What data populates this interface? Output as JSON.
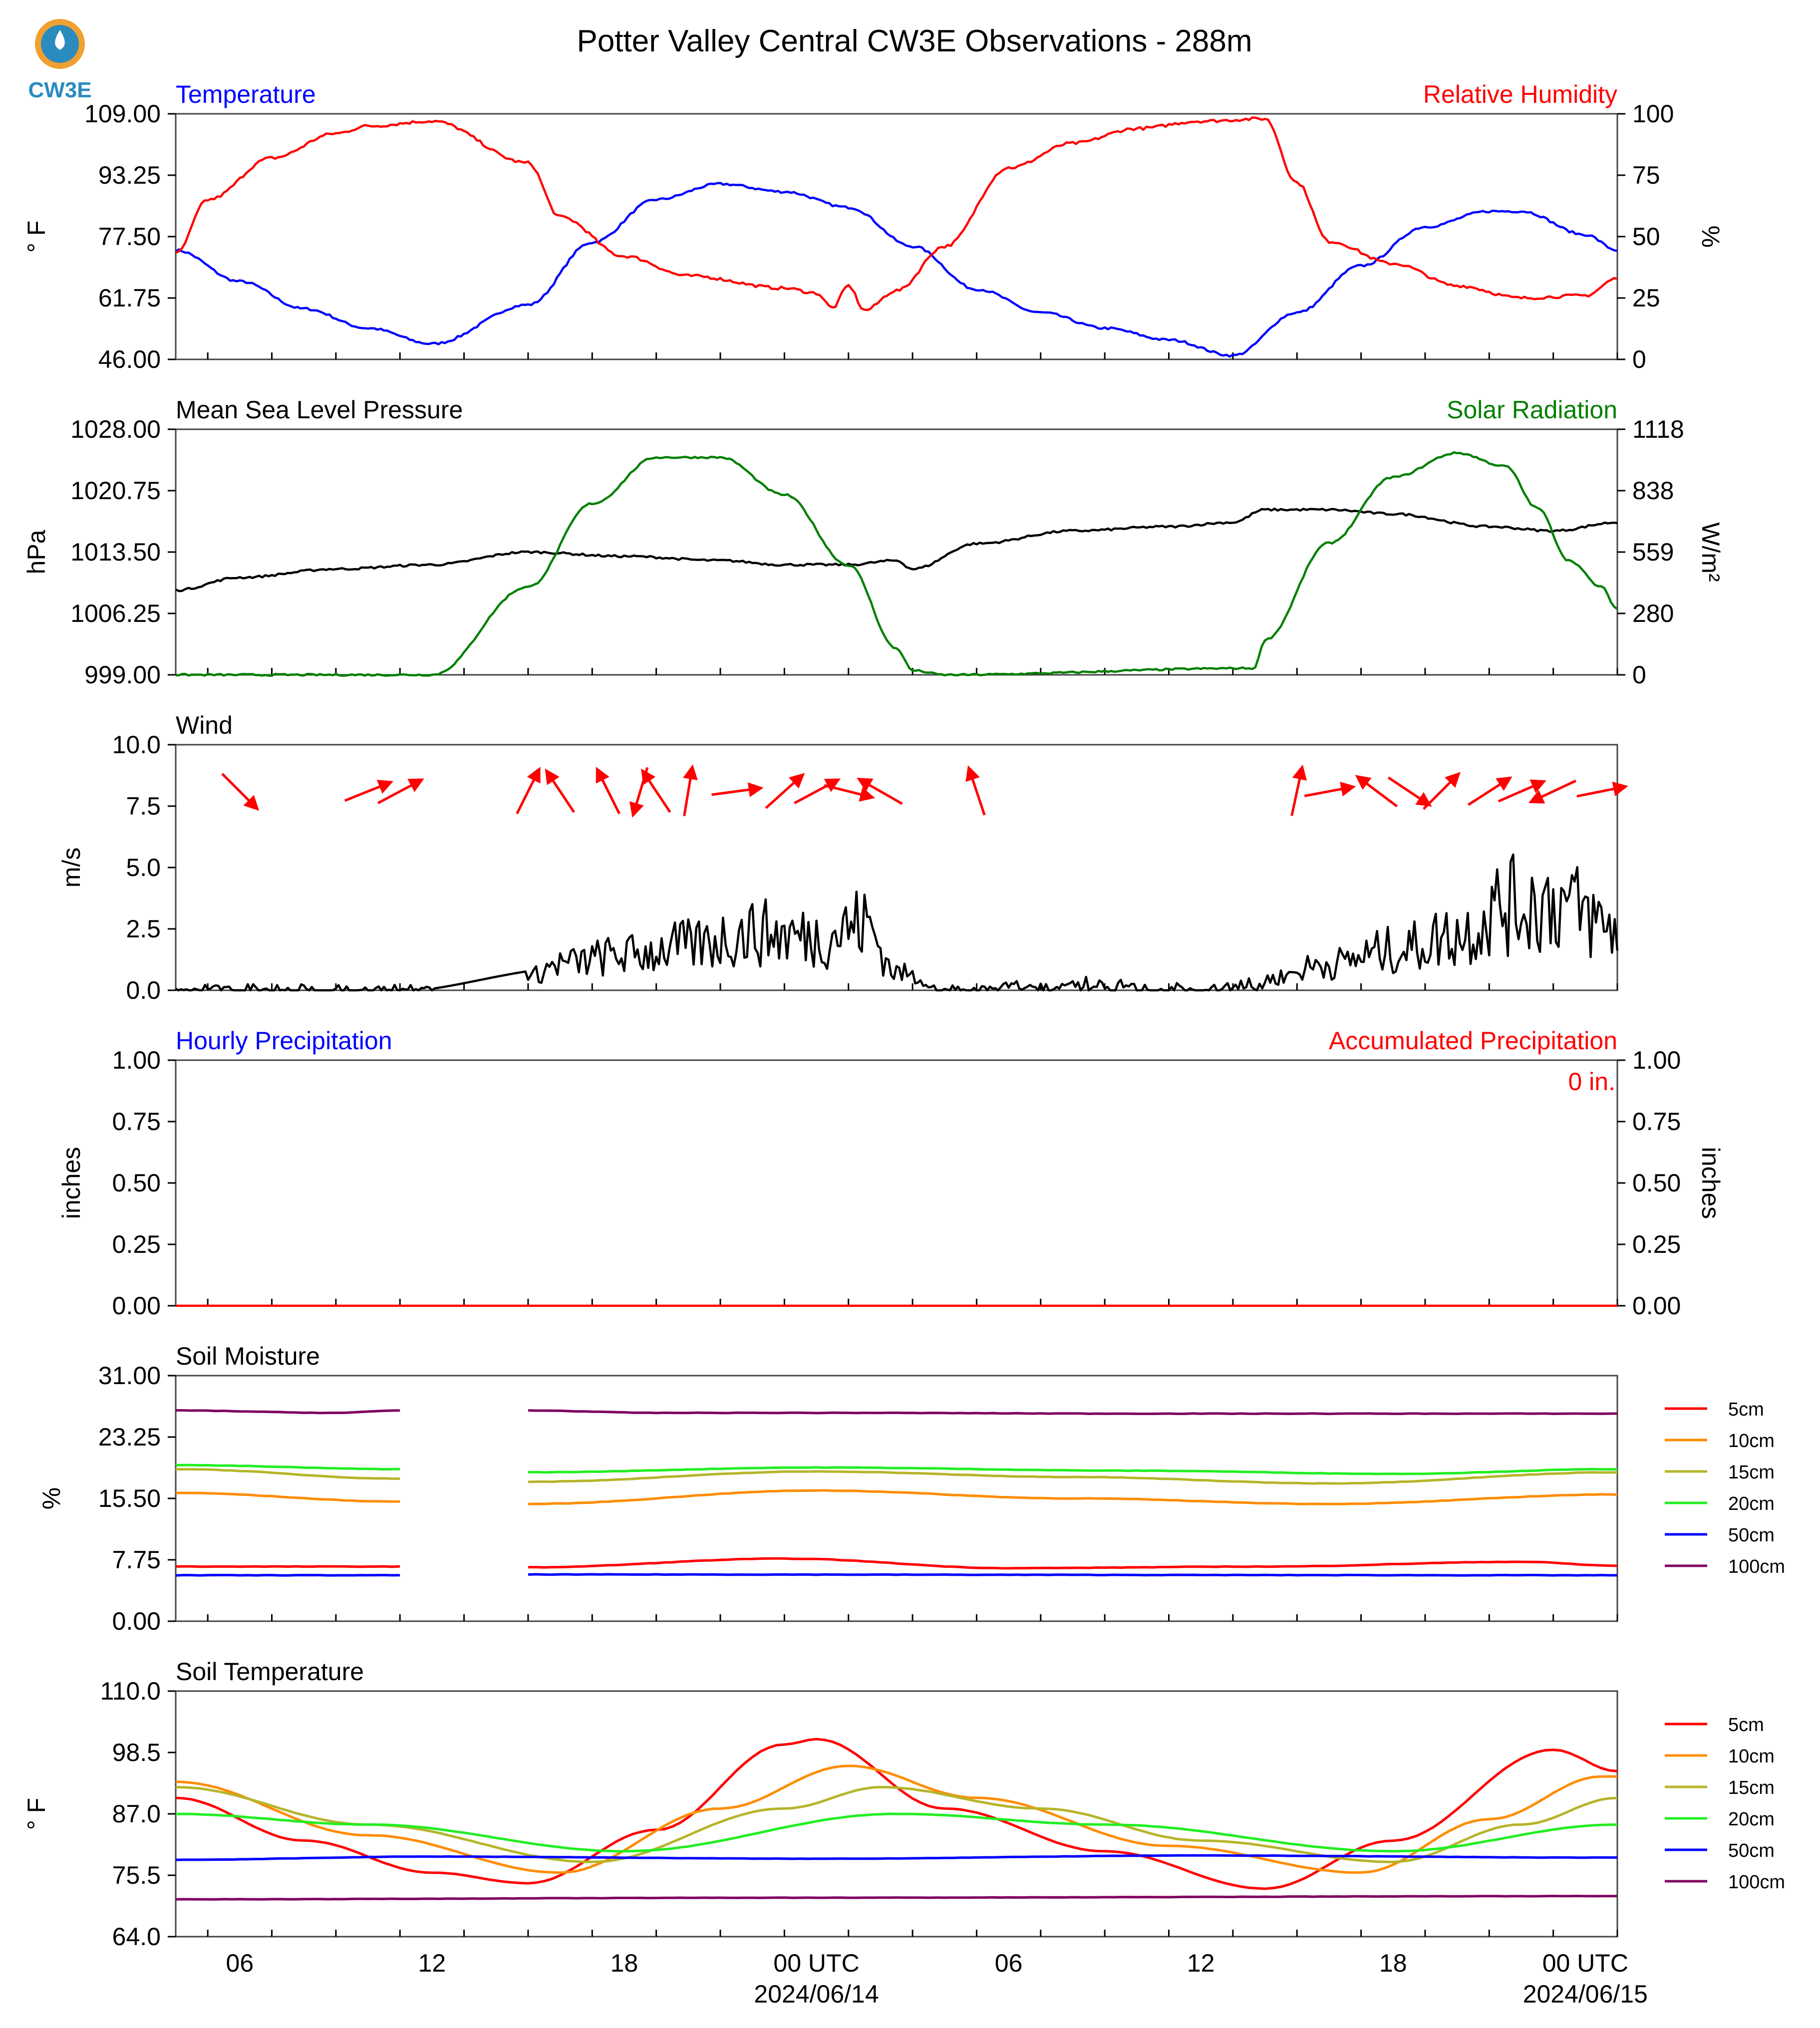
{
  "title": "Potter Valley Central CW3E Observations - 288m",
  "logo": {
    "text": "CW3E",
    "color": "#2a8bbf",
    "accent": "#f0a030"
  },
  "x_axis": {
    "hours_shown": [
      "06",
      "12",
      "18",
      "00 UTC",
      "06",
      "12",
      "18",
      "00 UTC"
    ],
    "dates": [
      "2024/06/14",
      "2024/06/15"
    ]
  },
  "colors": {
    "temperature": "#0000ff",
    "humidity": "#ff0000",
    "pressure": "#000000",
    "solar": "#007f00",
    "wind": "#000000",
    "wind_arrow": "#ff0000",
    "hourly_precip": "#0000ff",
    "accum_precip": "#ff0000",
    "depths": [
      "#ff0000",
      "#ff8c00",
      "#b5b52a",
      "#22ee22",
      "#0000ff",
      "#800060"
    ]
  },
  "chart_data": [
    {
      "type": "line",
      "name": "temperature-humidity",
      "left_title": "Temperature",
      "right_title": "Relative Humidity",
      "ylabel": "° F",
      "ylabel2": "%",
      "yticks": [
        "46.00",
        "61.75",
        "77.50",
        "93.25",
        "109.00"
      ],
      "yticks2": [
        "0",
        "25",
        "50",
        "75",
        "100"
      ],
      "ylim": [
        46,
        109
      ],
      "ylim2": [
        0,
        100
      ],
      "series": [
        {
          "axis": "left",
          "color": "#0000ff",
          "x": [
            "2024-06-13T04:00Z",
            "2024-06-13T06:00Z",
            "2024-06-13T08:00Z",
            "2024-06-13T10:00Z",
            "2024-06-13T12:00Z",
            "2024-06-13T15:00Z",
            "2024-06-13T17:00Z",
            "2024-06-13T19:00Z",
            "2024-06-13T21:00Z",
            "2024-06-13T23:00Z",
            "2024-06-14T01:00Z",
            "2024-06-14T03:00Z",
            "2024-06-14T05:00Z",
            "2024-06-14T07:00Z",
            "2024-06-14T09:00Z",
            "2024-06-14T11:00Z",
            "2024-06-14T13:00Z",
            "2024-06-14T15:00Z",
            "2024-06-14T17:00Z",
            "2024-06-14T19:00Z",
            "2024-06-14T21:00Z",
            "2024-06-14T22:00Z",
            "2024-06-15T00:00Z",
            "2024-06-15T01:00Z"
          ],
          "y": [
            74,
            66,
            59,
            54,
            50,
            60,
            76,
            87,
            91,
            89,
            85,
            75,
            64,
            58,
            54,
            51,
            47,
            58,
            70,
            80,
            84,
            84,
            78,
            74
          ]
        },
        {
          "axis": "right",
          "color": "#ff0000",
          "x": [
            "2024-06-13T04:00Z",
            "2024-06-13T05:00Z",
            "2024-06-13T07:00Z",
            "2024-06-13T09:00Z",
            "2024-06-13T10:00Z",
            "2024-06-13T12:00Z",
            "2024-06-13T15:00Z",
            "2024-06-13T16:00Z",
            "2024-06-13T18:00Z",
            "2024-06-13T20:00Z",
            "2024-06-13T23:00Z",
            "2024-06-14T00:00Z",
            "2024-06-14T00:30Z",
            "2024-06-14T01:00Z",
            "2024-06-14T01:30Z",
            "2024-06-14T02:30Z",
            "2024-06-14T04:00Z",
            "2024-06-14T06:00Z",
            "2024-06-14T08:00Z",
            "2024-06-14T10:00Z",
            "2024-06-14T12:00Z",
            "2024-06-14T14:00Z",
            "2024-06-14T15:00Z",
            "2024-06-14T16:00Z",
            "2024-06-14T18:00Z",
            "2024-06-14T20:00Z",
            "2024-06-14T22:00Z",
            "2024-06-15T00:00Z",
            "2024-06-15T01:00Z"
          ],
          "y": [
            43,
            65,
            82,
            92,
            95,
            97,
            80,
            58,
            42,
            34,
            29,
            27,
            21,
            30,
            20,
            28,
            46,
            78,
            88,
            94,
            97,
            98,
            72,
            48,
            39,
            30,
            25,
            26,
            33
          ]
        }
      ]
    },
    {
      "type": "line",
      "name": "pressure-solar",
      "left_title": "Mean Sea Level Pressure",
      "right_title": "Solar Radiation",
      "ylabel": "hPa",
      "ylabel2": "W/m²",
      "yticks": [
        "999.00",
        "1006.25",
        "1013.50",
        "1020.75",
        "1028.00"
      ],
      "yticks2": [
        "0",
        "280",
        "559",
        "838",
        "1118"
      ],
      "ylim": [
        999,
        1028
      ],
      "ylim2": [
        0,
        1118
      ],
      "series": [
        {
          "axis": "left",
          "color": "#000000",
          "x": [
            "2024-06-13T04:00Z",
            "2024-06-13T06:00Z",
            "2024-06-13T09:00Z",
            "2024-06-13T12:00Z",
            "2024-06-13T15:00Z",
            "2024-06-13T18:00Z",
            "2024-06-13T21:00Z",
            "2024-06-13T23:00Z",
            "2024-06-14T01:00Z",
            "2024-06-14T02:30Z",
            "2024-06-14T03:00Z",
            "2024-06-14T05:00Z",
            "2024-06-14T08:00Z",
            "2024-06-14T11:00Z",
            "2024-06-14T13:00Z",
            "2024-06-14T14:00Z",
            "2024-06-14T16:00Z",
            "2024-06-14T18:00Z",
            "2024-06-14T21:00Z",
            "2024-06-14T23:00Z",
            "2024-06-15T01:00Z"
          ],
          "y": [
            1009,
            1010.5,
            1011.5,
            1012,
            1013.5,
            1013,
            1012.5,
            1012,
            1012,
            1012.5,
            1011.5,
            1014.5,
            1016,
            1016.5,
            1017,
            1018.5,
            1018.5,
            1018,
            1016.5,
            1016,
            1017
          ]
        },
        {
          "axis": "right",
          "color": "#007f00",
          "x": [
            "2024-06-13T04:00Z",
            "2024-06-13T12:00Z",
            "2024-06-13T15:00Z",
            "2024-06-13T17:00Z",
            "2024-06-13T19:00Z",
            "2024-06-13T21:00Z",
            "2024-06-13T23:00Z",
            "2024-06-14T01:00Z",
            "2024-06-14T02:30Z",
            "2024-06-14T03:00Z",
            "2024-06-14T04:00Z",
            "2024-06-14T13:40Z",
            "2024-06-14T14:00Z",
            "2024-06-14T16:00Z",
            "2024-06-14T18:00Z",
            "2024-06-14T20:00Z",
            "2024-06-14T21:30Z",
            "2024-06-14T22:30Z",
            "2024-06-14T23:30Z",
            "2024-06-15T00:30Z",
            "2024-06-15T01:00Z"
          ],
          "y": [
            0,
            0,
            400,
            780,
            990,
            990,
            820,
            500,
            120,
            20,
            0,
            30,
            160,
            600,
            900,
            1010,
            950,
            760,
            520,
            400,
            300
          ]
        }
      ]
    },
    {
      "type": "line",
      "name": "wind",
      "left_title": "Wind",
      "ylabel": "m/s",
      "yticks": [
        "0.0",
        "2.5",
        "5.0",
        "7.5",
        "10.0"
      ],
      "ylim": [
        0,
        10
      ],
      "series": [
        {
          "color": "#000000",
          "x": [
            "2024-06-13T04:00Z",
            "2024-06-13T08:00Z",
            "2024-06-13T12:00Z",
            "2024-06-13T15:00Z",
            "2024-06-13T16:00Z",
            "2024-06-13T18:00Z",
            "2024-06-13T20:00Z",
            "2024-06-13T22:00Z",
            "2024-06-14T00:00Z",
            "2024-06-14T01:30Z",
            "2024-06-14T02:30Z",
            "2024-06-14T04:00Z",
            "2024-06-14T08:00Z",
            "2024-06-14T12:00Z",
            "2024-06-14T14:00Z",
            "2024-06-14T16:00Z",
            "2024-06-14T18:00Z",
            "2024-06-14T20:00Z",
            "2024-06-14T21:30Z",
            "2024-06-14T23:00Z",
            "2024-06-15T01:00Z"
          ],
          "y": [
            0.3,
            0.2,
            0.2,
            0.6,
            1.2,
            1.6,
            2.0,
            2.6,
            2.4,
            3.0,
            0.8,
            0.2,
            0.4,
            0.2,
            0.5,
            1.2,
            1.8,
            2.5,
            3.8,
            4.0,
            2.8
          ]
        }
      ],
      "wind_barbs": {
        "x": [
          "2024-06-13T06:00Z",
          "2024-06-13T10:00Z",
          "2024-06-13T11:00Z",
          "2024-06-13T15:00Z",
          "2024-06-13T16:00Z",
          "2024-06-13T17:30Z",
          "2024-06-13T18:30Z",
          "2024-06-13T19:00Z",
          "2024-06-13T20:00Z",
          "2024-06-13T21:30Z",
          "2024-06-13T23:00Z",
          "2024-06-14T00:00Z",
          "2024-06-14T01:00Z",
          "2024-06-14T02:00Z",
          "2024-06-14T05:00Z",
          "2024-06-14T15:00Z",
          "2024-06-14T16:00Z",
          "2024-06-14T17:30Z",
          "2024-06-14T18:30Z",
          "2024-06-14T19:30Z",
          "2024-06-14T21:00Z",
          "2024-06-14T22:00Z",
          "2024-06-14T23:00Z",
          "2024-06-15T00:30Z"
        ],
        "dx": [
          1,
          2,
          1.5,
          0.6,
          -0.8,
          -0.6,
          -0.3,
          -0.8,
          0.2,
          1.5,
          1,
          1.5,
          1.6,
          -1.4,
          -0.4,
          0.3,
          1.6,
          -1.2,
          1.2,
          1.2,
          1.4,
          1.6,
          -1.7,
          1.5
        ],
        "dy": [
          -1,
          0.8,
          0.8,
          1.2,
          1.2,
          1.2,
          -1,
          1.2,
          1.2,
          0.2,
          0.9,
          0.8,
          -0.4,
          0.8,
          1.2,
          1.4,
          0.3,
          0.9,
          -0.8,
          1.2,
          0.9,
          0.7,
          -0.8,
          0.3
        ]
      }
    },
    {
      "type": "line",
      "name": "precipitation",
      "left_title": "Hourly Precipitation",
      "right_title": "Accumulated Precipitation",
      "ylabel": "inches",
      "ylabel2": "inches",
      "yticks": [
        "0.00",
        "0.25",
        "0.50",
        "0.75",
        "1.00"
      ],
      "yticks2": [
        "0.00",
        "0.25",
        "0.50",
        "0.75",
        "1.00"
      ],
      "ylim": [
        0,
        1
      ],
      "accumulated_label": "0 in.",
      "series": [
        {
          "color": "#ff0000",
          "x": [
            "2024-06-13T04:00Z",
            "2024-06-15T01:00Z"
          ],
          "y": [
            0,
            0
          ]
        }
      ]
    },
    {
      "type": "line",
      "name": "soil-moisture",
      "left_title": "Soil Moisture",
      "ylabel": "%",
      "yticks": [
        "0.00",
        "7.75",
        "15.50",
        "23.25",
        "31.00"
      ],
      "ylim": [
        0,
        31
      ],
      "gap": [
        "2024-06-13T11:00Z",
        "2024-06-13T15:00Z"
      ],
      "series": [
        {
          "name": "5cm",
          "x": [
            "2024-06-13T04:00Z",
            "2024-06-13T11:00Z",
            "2024-06-13T15:00Z",
            "2024-06-13T23:00Z",
            "2024-06-14T06:00Z",
            "2024-06-14T14:00Z",
            "2024-06-14T22:00Z",
            "2024-06-15T01:00Z"
          ],
          "y": [
            6.9,
            6.9,
            6.8,
            7.9,
            6.7,
            6.9,
            7.5,
            7.0
          ]
        },
        {
          "name": "10cm",
          "x": [
            "2024-06-13T04:00Z",
            "2024-06-13T11:00Z",
            "2024-06-13T15:00Z",
            "2024-06-14T00:00Z",
            "2024-06-14T08:00Z",
            "2024-06-14T16:00Z",
            "2024-06-15T01:00Z"
          ],
          "y": [
            16.2,
            15.1,
            14.8,
            16.5,
            15.5,
            14.8,
            16.0
          ]
        },
        {
          "name": "15cm",
          "x": [
            "2024-06-13T04:00Z",
            "2024-06-13T11:00Z",
            "2024-06-13T15:00Z",
            "2024-06-14T00:00Z",
            "2024-06-14T08:00Z",
            "2024-06-14T16:00Z",
            "2024-06-15T01:00Z"
          ],
          "y": [
            19.2,
            18.0,
            17.6,
            18.9,
            18.2,
            17.4,
            18.8
          ]
        },
        {
          "name": "20cm",
          "x": [
            "2024-06-13T04:00Z",
            "2024-06-13T11:00Z",
            "2024-06-13T15:00Z",
            "2024-06-14T00:00Z",
            "2024-06-14T10:00Z",
            "2024-06-14T18:00Z",
            "2024-06-15T01:00Z"
          ],
          "y": [
            19.7,
            19.2,
            18.8,
            19.4,
            19.0,
            18.6,
            19.2
          ]
        },
        {
          "name": "50cm",
          "x": [
            "2024-06-13T04:00Z",
            "2024-06-13T11:00Z",
            "2024-06-13T15:00Z",
            "2024-06-15T01:00Z"
          ],
          "y": [
            5.8,
            5.8,
            5.9,
            5.8
          ]
        },
        {
          "name": "100cm",
          "x": [
            "2024-06-13T04:00Z",
            "2024-06-13T09:00Z",
            "2024-06-13T11:00Z",
            "2024-06-13T15:00Z",
            "2024-06-13T19:00Z",
            "2024-06-14T01:00Z",
            "2024-06-14T10:00Z",
            "2024-06-15T01:00Z"
          ],
          "y": [
            26.6,
            26.3,
            26.6,
            26.6,
            26.3,
            26.3,
            26.2,
            26.2
          ]
        }
      ]
    },
    {
      "type": "line",
      "name": "soil-temperature",
      "left_title": "Soil Temperature",
      "ylabel": "° F",
      "yticks": [
        "64.0",
        "75.5",
        "87.0",
        "98.5",
        "110.0"
      ],
      "ylim": [
        64,
        110
      ],
      "series": [
        {
          "name": "5cm",
          "x": [
            "2024-06-13T04:00Z",
            "2024-06-13T08:00Z",
            "2024-06-13T12:00Z",
            "2024-06-13T15:00Z",
            "2024-06-13T19:00Z",
            "2024-06-13T23:00Z",
            "2024-06-14T00:00Z",
            "2024-06-14T04:00Z",
            "2024-06-14T09:00Z",
            "2024-06-14T14:00Z",
            "2024-06-14T18:00Z",
            "2024-06-14T23:00Z",
            "2024-06-15T01:00Z"
          ],
          "y": [
            90,
            82,
            76,
            74,
            84,
            100,
            101,
            88,
            80,
            73,
            82,
            99,
            95
          ]
        },
        {
          "name": "10cm",
          "x": [
            "2024-06-13T04:00Z",
            "2024-06-13T10:00Z",
            "2024-06-13T16:00Z",
            "2024-06-13T21:00Z",
            "2024-06-14T01:00Z",
            "2024-06-14T05:00Z",
            "2024-06-14T11:00Z",
            "2024-06-14T17:00Z",
            "2024-06-14T21:00Z",
            "2024-06-15T00:30Z",
            "2024-06-15T01:00Z"
          ],
          "y": [
            93,
            83,
            76,
            88,
            96,
            90,
            81,
            76,
            86,
            94,
            94
          ]
        },
        {
          "name": "15cm",
          "x": [
            "2024-06-13T04:00Z",
            "2024-06-13T10:00Z",
            "2024-06-13T17:00Z",
            "2024-06-13T23:00Z",
            "2024-06-14T02:00Z",
            "2024-06-14T07:00Z",
            "2024-06-14T12:00Z",
            "2024-06-14T18:00Z",
            "2024-06-14T22:00Z",
            "2024-06-15T01:00Z"
          ],
          "y": [
            92,
            85,
            78,
            88,
            92,
            88,
            82,
            78,
            85,
            90
          ]
        },
        {
          "name": "20cm",
          "x": [
            "2024-06-13T04:00Z",
            "2024-06-13T10:00Z",
            "2024-06-13T18:00Z",
            "2024-06-14T02:30Z",
            "2024-06-14T09:00Z",
            "2024-06-14T18:00Z",
            "2024-06-15T01:00Z"
          ],
          "y": [
            87,
            85,
            80,
            87,
            85,
            80,
            85
          ]
        },
        {
          "name": "50cm",
          "x": [
            "2024-06-13T04:00Z",
            "2024-06-13T12:00Z",
            "2024-06-14T00:00Z",
            "2024-06-14T12:00Z",
            "2024-06-15T01:00Z"
          ],
          "y": [
            78.4,
            79.0,
            78.6,
            79.2,
            78.8
          ]
        },
        {
          "name": "100cm",
          "x": [
            "2024-06-13T04:00Z",
            "2024-06-14T00:00Z",
            "2024-06-15T01:00Z"
          ],
          "y": [
            71.0,
            71.3,
            71.6
          ]
        }
      ]
    }
  ]
}
